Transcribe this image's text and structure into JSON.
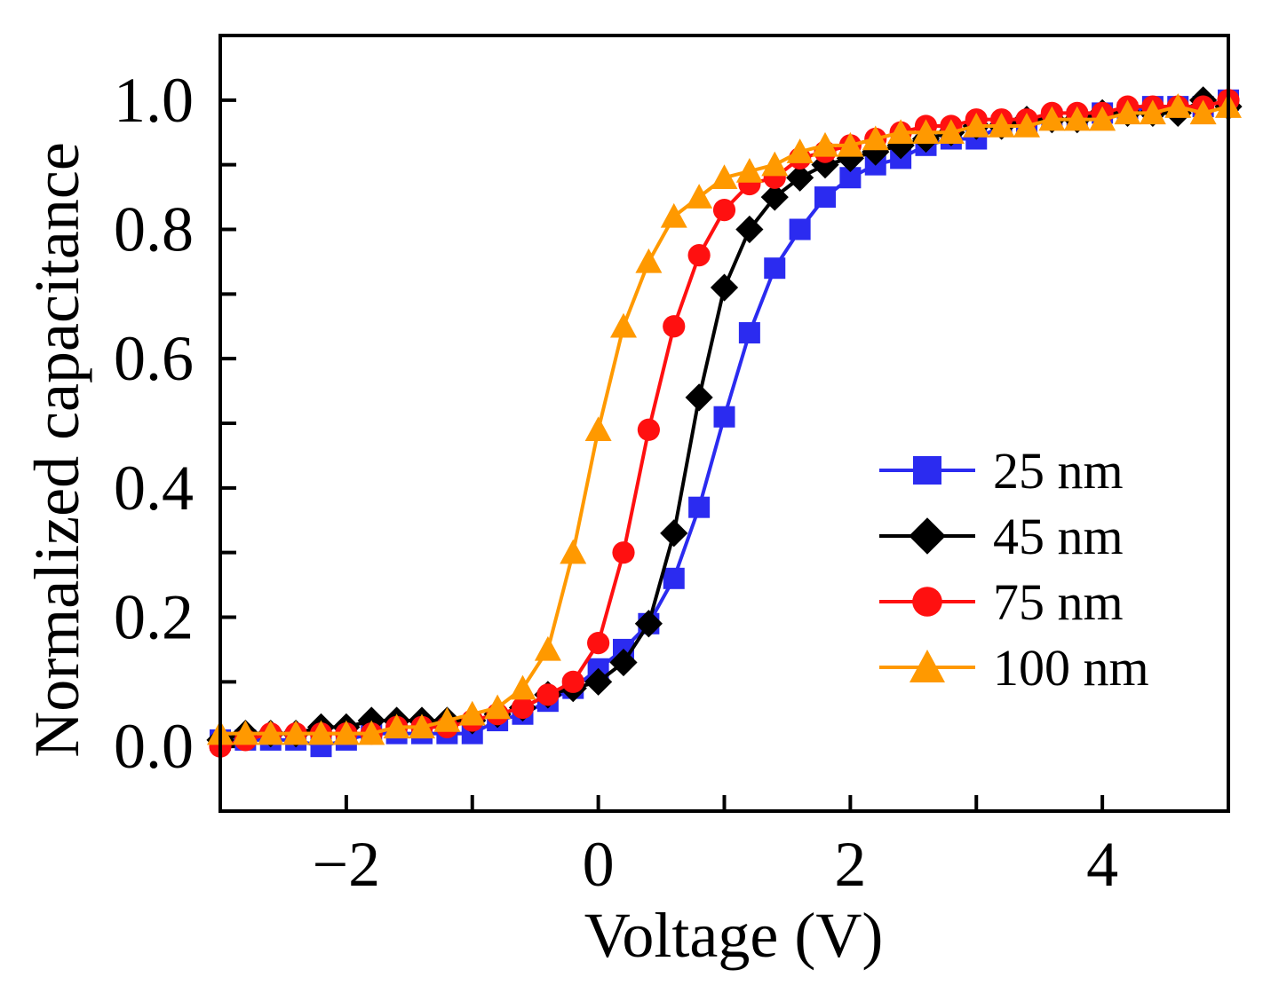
{
  "chart_data": {
    "type": "line",
    "title": "",
    "xlabel": "Voltage (V)",
    "ylabel": "Normalized capacitance",
    "xlim": [
      -3,
      5
    ],
    "ylim": [
      -0.1,
      1.1
    ],
    "x_ticks": [
      -2,
      0,
      2,
      4
    ],
    "x_tick_labels": [
      "−2",
      "0",
      "2",
      "4"
    ],
    "y_ticks": [
      0.0,
      0.2,
      0.4,
      0.6,
      0.8,
      1.0
    ],
    "y_tick_labels": [
      "0.0",
      "0.2",
      "0.4",
      "0.6",
      "0.8",
      "1.0"
    ],
    "grid": false,
    "legend_position": "lower-right",
    "x": [
      -3.0,
      -2.8,
      -2.6,
      -2.4,
      -2.2,
      -2.0,
      -1.8,
      -1.6,
      -1.4,
      -1.2,
      -1.0,
      -0.8,
      -0.6,
      -0.4,
      -0.2,
      0.0,
      0.2,
      0.4,
      0.6,
      0.8,
      1.0,
      1.2,
      1.4,
      1.6,
      1.8,
      2.0,
      2.2,
      2.4,
      2.6,
      2.8,
      3.0,
      3.2,
      3.4,
      3.6,
      3.8,
      4.0,
      4.2,
      4.4,
      4.6,
      4.8,
      5.0
    ],
    "series": [
      {
        "name": "25 nm",
        "color": "#2b2bf0",
        "marker": "square",
        "values": [
          0.01,
          0.01,
          0.01,
          0.01,
          0.0,
          0.01,
          0.02,
          0.02,
          0.02,
          0.02,
          0.02,
          0.04,
          0.05,
          0.07,
          0.09,
          0.12,
          0.15,
          0.19,
          0.26,
          0.37,
          0.51,
          0.64,
          0.74,
          0.8,
          0.85,
          0.88,
          0.9,
          0.91,
          0.93,
          0.94,
          0.94,
          0.96,
          0.96,
          0.97,
          0.97,
          0.98,
          0.98,
          0.99,
          0.99,
          0.99,
          1.0
        ]
      },
      {
        "name": "45 nm",
        "color": "#000000",
        "marker": "diamond",
        "values": [
          0.01,
          0.02,
          0.02,
          0.02,
          0.03,
          0.03,
          0.04,
          0.04,
          0.04,
          0.04,
          0.04,
          0.05,
          0.06,
          0.08,
          0.09,
          0.1,
          0.13,
          0.19,
          0.33,
          0.54,
          0.71,
          0.8,
          0.85,
          0.88,
          0.9,
          0.91,
          0.92,
          0.93,
          0.94,
          0.95,
          0.96,
          0.96,
          0.97,
          0.97,
          0.97,
          0.98,
          0.98,
          0.98,
          0.98,
          1.0,
          0.99
        ]
      },
      {
        "name": "75 nm",
        "color": "#ff1010",
        "marker": "circle",
        "values": [
          0.0,
          0.01,
          0.02,
          0.02,
          0.02,
          0.02,
          0.02,
          0.03,
          0.03,
          0.03,
          0.04,
          0.05,
          0.06,
          0.08,
          0.1,
          0.16,
          0.3,
          0.49,
          0.65,
          0.76,
          0.83,
          0.87,
          0.88,
          0.91,
          0.92,
          0.93,
          0.94,
          0.95,
          0.96,
          0.96,
          0.97,
          0.97,
          0.97,
          0.98,
          0.98,
          0.98,
          0.99,
          0.99,
          0.99,
          0.99,
          1.0
        ]
      },
      {
        "name": "100 nm",
        "color": "#ff9900",
        "marker": "triangle",
        "values": [
          0.02,
          0.02,
          0.02,
          0.02,
          0.02,
          0.02,
          0.02,
          0.03,
          0.03,
          0.04,
          0.05,
          0.06,
          0.09,
          0.15,
          0.3,
          0.49,
          0.65,
          0.75,
          0.82,
          0.85,
          0.88,
          0.89,
          0.9,
          0.92,
          0.93,
          0.93,
          0.94,
          0.95,
          0.95,
          0.95,
          0.96,
          0.96,
          0.96,
          0.97,
          0.97,
          0.97,
          0.98,
          0.98,
          0.99,
          0.98,
          0.99
        ]
      }
    ]
  }
}
